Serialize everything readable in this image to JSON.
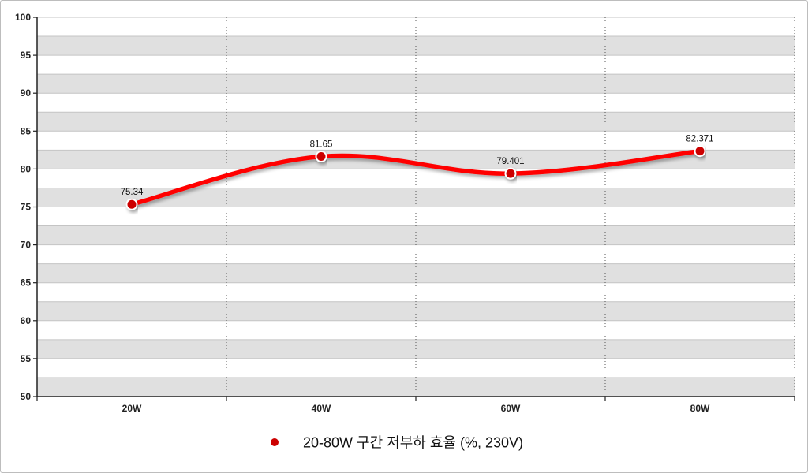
{
  "chart_data": {
    "type": "line",
    "smooth": true,
    "categories": [
      "20W",
      "40W",
      "60W",
      "80W"
    ],
    "series": [
      {
        "name": "20-80W 구간 저부하 효율 (%, 230V)",
        "values": [
          75.34,
          81.65,
          79.401,
          82.371
        ],
        "data_labels": [
          "75.34",
          "81.65",
          "79.401",
          "82.371"
        ],
        "color": "#ff0000",
        "marker_color": "#cc0000"
      }
    ],
    "ylim": [
      50,
      100
    ],
    "ytick_step": 5,
    "y_ticks": [
      "100",
      "95",
      "90",
      "85",
      "80",
      "75",
      "70",
      "65",
      "60",
      "55",
      "50"
    ],
    "grid": true,
    "band_colors": [
      "#e0e0e0",
      "#ffffff"
    ],
    "legend_position": "bottom-center"
  }
}
